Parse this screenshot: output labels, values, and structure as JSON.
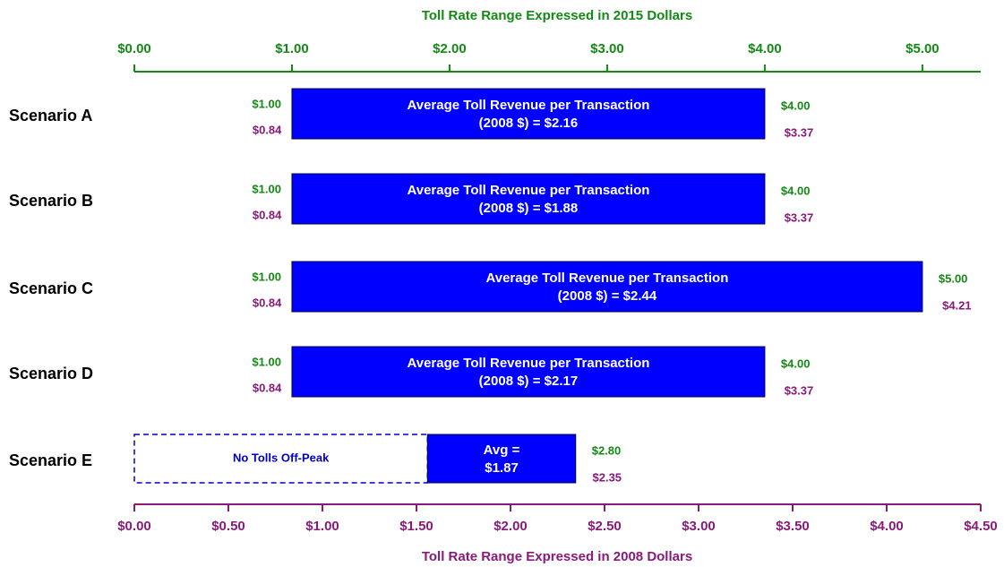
{
  "chart_data": {
    "type": "range_bar",
    "xlabel": "Toll Rate Range Expressed in 2015 Dollars",
    "x2label": "Toll Rate Range Expressed in 2008 Dollars",
    "categories": [
      "Scenario A",
      "Scenario B",
      "Scenario C",
      "Scenario D",
      "Scenario E"
    ],
    "low": [
      1.0,
      1.0,
      1.0,
      1.0,
      1.86
    ],
    "low_labels": [
      "$1.00",
      "$1.00",
      "$1.00",
      "$1.00",
      null
    ],
    "high": [
      4.0,
      4.0,
      5.0,
      4.0,
      2.8
    ],
    "high_labels": [
      "$4.00",
      "$4.00",
      "$5.00",
      "$4.00",
      "$2.80"
    ],
    "low_2008": [
      0.84,
      0.84,
      0.84,
      0.84,
      null
    ],
    "low_2008_labels": [
      "$0.84",
      "$0.84",
      "$0.84",
      "$0.84",
      null
    ],
    "high_2008": [
      3.37,
      3.37,
      4.21,
      3.37,
      2.35
    ],
    "high_2008_labels": [
      "$3.37",
      "$3.37",
      "$4.21",
      "$3.37",
      "$2.35"
    ],
    "bar_texts": [
      [
        "Average Toll  Revenue per Transaction",
        "(2008 $) = $2.16"
      ],
      [
        "Average Toll Revenue per Transaction",
        "(2008 $) = $1.88"
      ],
      [
        "Average Toll Revenue per Transaction",
        "(2008 $) = $2.44"
      ],
      [
        "Average Toll Revenue per Transaction",
        "(2008 $) = $2.17"
      ],
      [
        "Avg  =",
        "$1.87"
      ]
    ],
    "offpeak_text": "No Tolls Off-Peak",
    "color": "#0000ff",
    "xlim": [
      0,
      5.37
    ],
    "xticks": [
      {
        "value": 0,
        "label": "$0.00"
      },
      {
        "value": 1,
        "label": "$1.00"
      },
      {
        "value": 2,
        "label": "$2.00"
      },
      {
        "value": 3,
        "label": "$3.00"
      },
      {
        "value": 4,
        "label": "$4.00"
      },
      {
        "value": 5,
        "label": "$5.00"
      }
    ],
    "x2lim": [
      0,
      4.5
    ],
    "x2ticks": [
      {
        "value": 0,
        "label": "$0.00"
      },
      {
        "value": 0.5,
        "label": "$0.50"
      },
      {
        "value": 1,
        "label": "$1.00"
      },
      {
        "value": 1.5,
        "label": "$1.50"
      },
      {
        "value": 2,
        "label": "$2.00"
      },
      {
        "value": 2.5,
        "label": "$2.50"
      },
      {
        "value": 3,
        "label": "$3.00"
      },
      {
        "value": 3.5,
        "label": "$3.50"
      },
      {
        "value": 4,
        "label": "$4.00"
      },
      {
        "value": 4.5,
        "label": "$4.50"
      }
    ]
  }
}
